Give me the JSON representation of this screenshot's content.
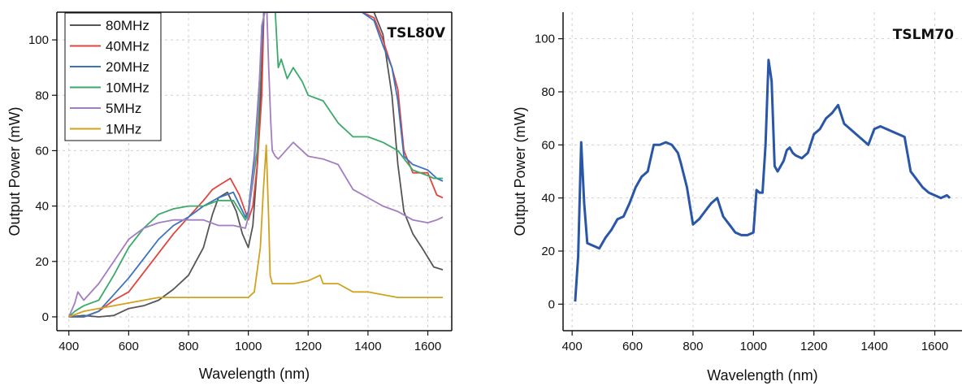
{
  "chart_data": [
    {
      "type": "line",
      "title": "TSL80V",
      "xlabel": "Wavelength (nm)",
      "ylabel": "Output Power (mW)",
      "xlim": [
        360,
        1680
      ],
      "ylim": [
        -5,
        110
      ],
      "xticks": [
        400,
        600,
        800,
        1000,
        1200,
        1400,
        1600
      ],
      "yticks": [
        0,
        20,
        40,
        60,
        80,
        100
      ],
      "grid": true,
      "legend_position": "top-left",
      "series": [
        {
          "name": "80MHz",
          "color": "#555555",
          "x": [
            400,
            450,
            500,
            550,
            600,
            650,
            700,
            750,
            800,
            850,
            880,
            900,
            930,
            960,
            980,
            1000,
            1015,
            1030,
            1045,
            1052,
            1058,
            1062,
            1070,
            1100,
            1150,
            1200,
            1250,
            1300,
            1330,
            1360,
            1390,
            1420,
            1450,
            1480,
            1500,
            1520,
            1550,
            1580,
            1620,
            1650
          ],
          "y": [
            0,
            0.5,
            0,
            0.5,
            3,
            4,
            6,
            10,
            15,
            25,
            37,
            43,
            45,
            38,
            30,
            25,
            33,
            55,
            90,
            110,
            110,
            110,
            110,
            110,
            110,
            110,
            110,
            110,
            110,
            110,
            110,
            110,
            102,
            80,
            55,
            38,
            30,
            25,
            18,
            17
          ]
        },
        {
          "name": "40MHz",
          "color": "#e2443d",
          "x": [
            400,
            450,
            500,
            550,
            600,
            650,
            700,
            750,
            800,
            850,
            880,
            910,
            940,
            970,
            1000,
            1015,
            1030,
            1045,
            1052,
            1058,
            1062,
            1100,
            1200,
            1300,
            1380,
            1420,
            1450,
            1480,
            1500,
            1520,
            1550,
            1600,
            1630,
            1650
          ],
          "y": [
            0,
            0,
            2,
            6,
            9,
            16,
            23,
            30,
            36,
            42,
            46,
            48,
            50,
            44,
            35,
            40,
            55,
            80,
            110,
            110,
            110,
            110,
            110,
            110,
            110,
            108,
            100,
            90,
            82,
            60,
            52,
            52,
            44,
            43
          ]
        },
        {
          "name": "20MHz",
          "color": "#3b72c0",
          "x": [
            400,
            450,
            500,
            550,
            600,
            650,
            700,
            750,
            800,
            850,
            900,
            950,
            990,
            1000,
            1020,
            1040,
            1052,
            1062,
            1100,
            1200,
            1300,
            1380,
            1420,
            1450,
            1480,
            1500,
            1520,
            1550,
            1600,
            1630,
            1650
          ],
          "y": [
            0,
            0,
            2,
            8,
            14,
            21,
            28,
            33,
            36,
            40,
            43,
            45,
            36,
            38,
            58,
            90,
            110,
            110,
            110,
            110,
            110,
            110,
            107,
            98,
            90,
            78,
            58,
            55,
            53,
            50,
            49
          ]
        },
        {
          "name": "10MHz",
          "color": "#3aaa6a",
          "x": [
            400,
            420,
            450,
            500,
            550,
            600,
            650,
            700,
            750,
            800,
            850,
            900,
            950,
            990,
            1000,
            1030,
            1045,
            1055,
            1065,
            1075,
            1090,
            1100,
            1110,
            1130,
            1150,
            1180,
            1200,
            1250,
            1300,
            1350,
            1400,
            1450,
            1500,
            1550,
            1600,
            1620,
            1650
          ],
          "y": [
            0,
            2,
            4,
            6,
            15,
            25,
            32,
            37,
            39,
            40,
            40,
            42,
            42,
            35,
            37,
            60,
            105,
            110,
            110,
            110,
            110,
            90,
            93,
            86,
            90,
            85,
            80,
            78,
            70,
            65,
            65,
            63,
            60,
            53,
            51,
            50,
            50
          ]
        },
        {
          "name": "5MHz",
          "color": "#a27ec1",
          "x": [
            400,
            420,
            430,
            450,
            500,
            550,
            600,
            650,
            700,
            750,
            800,
            850,
            900,
            950,
            990,
            1000,
            1020,
            1035,
            1045,
            1055,
            1062,
            1068,
            1075,
            1080,
            1090,
            1100,
            1150,
            1200,
            1250,
            1300,
            1350,
            1400,
            1450,
            1500,
            1550,
            1600,
            1630,
            1650
          ],
          "y": [
            0,
            5,
            9,
            6,
            12,
            20,
            28,
            32,
            34,
            35,
            35,
            35,
            33,
            33,
            32,
            36,
            55,
            80,
            105,
            110,
            110,
            90,
            70,
            60,
            58,
            57,
            63,
            58,
            57,
            55,
            46,
            43,
            40,
            38,
            35,
            34,
            35,
            36
          ]
        },
        {
          "name": "1MHz",
          "color": "#d2a21f",
          "x": [
            400,
            450,
            500,
            600,
            700,
            800,
            900,
            950,
            1000,
            1020,
            1040,
            1050,
            1060,
            1068,
            1073,
            1080,
            1090,
            1100,
            1150,
            1200,
            1240,
            1250,
            1300,
            1350,
            1400,
            1450,
            1500,
            1550,
            1600,
            1650
          ],
          "y": [
            0,
            2,
            3,
            5,
            7,
            7,
            7,
            7,
            7,
            9,
            25,
            45,
            62,
            35,
            15,
            12,
            12,
            12,
            12,
            13,
            15,
            12,
            12,
            9,
            9,
            8,
            7,
            7,
            7,
            7
          ]
        }
      ]
    },
    {
      "type": "line",
      "title": "TSLM70",
      "xlabel": "Wavelength (nm)",
      "ylabel": "Output Power (mW)",
      "xlim": [
        370,
        1690
      ],
      "ylim": [
        -10,
        110
      ],
      "xticks": [
        400,
        600,
        800,
        1000,
        1200,
        1400,
        1600
      ],
      "yticks": [
        0,
        20,
        40,
        60,
        80,
        100
      ],
      "grid": true,
      "series": [
        {
          "color": "#2a56a8",
          "x": [
            410,
            420,
            430,
            440,
            450,
            470,
            490,
            510,
            530,
            550,
            570,
            590,
            610,
            630,
            650,
            670,
            690,
            710,
            730,
            750,
            760,
            780,
            800,
            820,
            840,
            860,
            880,
            900,
            920,
            940,
            960,
            980,
            1000,
            1010,
            1020,
            1030,
            1040,
            1050,
            1060,
            1070,
            1080,
            1090,
            1100,
            1110,
            1120,
            1130,
            1140,
            1160,
            1180,
            1200,
            1220,
            1240,
            1260,
            1280,
            1300,
            1320,
            1340,
            1360,
            1380,
            1400,
            1420,
            1440,
            1460,
            1480,
            1500,
            1520,
            1540,
            1560,
            1580,
            1600,
            1620,
            1640,
            1650
          ],
          "y": [
            1,
            18,
            61,
            38,
            23,
            22,
            21,
            25,
            28,
            32,
            33,
            38,
            44,
            48,
            50,
            60,
            60,
            61,
            60,
            57,
            53,
            44,
            30,
            32,
            35,
            38,
            40,
            33,
            30,
            27,
            26,
            26,
            27,
            43,
            42,
            42,
            60,
            92,
            84,
            52,
            50,
            52,
            54,
            58,
            59,
            57,
            56,
            55,
            57,
            64,
            66,
            70,
            72,
            75,
            68,
            66,
            64,
            62,
            60,
            66,
            67,
            66,
            65,
            64,
            63,
            50,
            47,
            44,
            42,
            41,
            40,
            41,
            40
          ]
        }
      ]
    }
  ]
}
